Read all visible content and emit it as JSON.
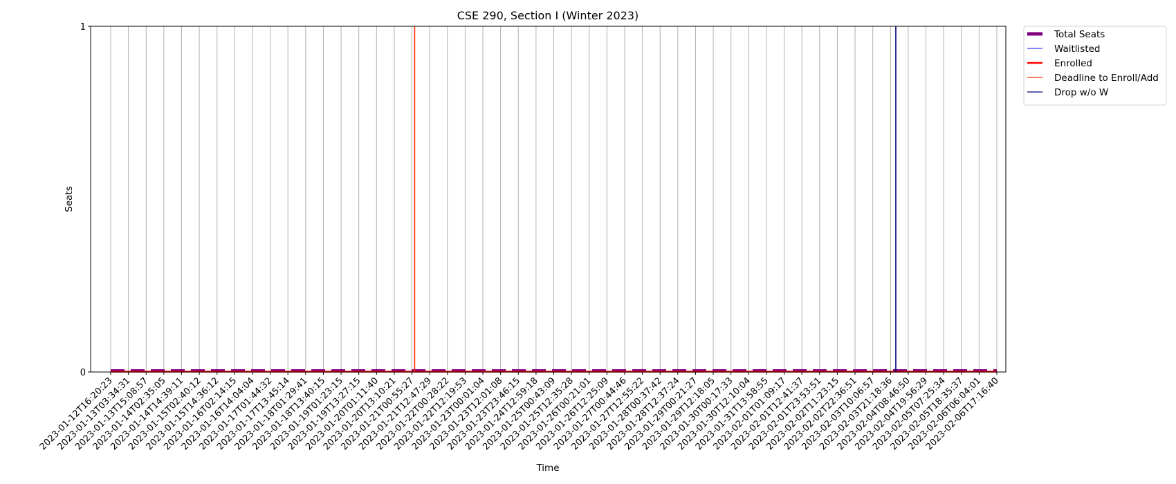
{
  "chart_data": {
    "type": "line",
    "title": "CSE 290, Section I (Winter 2023)",
    "xlabel": "Time",
    "ylabel": "Seats",
    "ylim": [
      0,
      1
    ],
    "yticks": [
      "0",
      "1"
    ],
    "grid": "vertical",
    "legend_position": "outside top-right",
    "x": [
      "2023-01-12T16:20:23",
      "2023-01-13T03:34:31",
      "2023-01-13T15:08:57",
      "2023-01-14T02:35:05",
      "2023-01-14T14:39:11",
      "2023-01-15T02:40:12",
      "2023-01-15T14:36:12",
      "2023-01-16T02:14:15",
      "2023-01-16T14:04:04",
      "2023-01-17T01:44:32",
      "2023-01-17T13:45:14",
      "2023-01-18T01:29:41",
      "2023-01-18T13:40:15",
      "2023-01-19T01:23:15",
      "2023-01-19T13:27:15",
      "2023-01-20T01:11:40",
      "2023-01-20T13:10:21",
      "2023-01-21T00:55:27",
      "2023-01-21T12:47:29",
      "2023-01-22T00:28:22",
      "2023-01-22T12:19:53",
      "2023-01-23T00:01:04",
      "2023-01-23T12:01:08",
      "2023-01-23T23:46:15",
      "2023-01-24T12:59:18",
      "2023-01-25T00:43:09",
      "2023-01-25T12:35:28",
      "2023-01-26T00:21:01",
      "2023-01-26T12:25:09",
      "2023-01-27T00:44:46",
      "2023-01-27T12:55:22",
      "2023-01-28T00:37:42",
      "2023-01-28T12:37:24",
      "2023-01-29T00:21:27",
      "2023-01-29T12:18:05",
      "2023-01-30T00:17:33",
      "2023-01-30T12:10:04",
      "2023-01-31T13:58:55",
      "2023-02-01T01:09:17",
      "2023-02-01T12:41:37",
      "2023-02-01T23:53:51",
      "2023-02-02T11:23:15",
      "2023-02-02T22:36:51",
      "2023-02-03T10:06:57",
      "2023-02-03T21:18:36",
      "2023-02-04T08:46:50",
      "2023-02-04T19:56:29",
      "2023-02-05T07:25:34",
      "2023-02-05T18:35:37",
      "2023-02-06T06:04:01",
      "2023-02-06T17:16:40"
    ],
    "series": [
      {
        "name": "Total Seats",
        "color": "#800080",
        "style": "thick dashed",
        "values": [
          0,
          0,
          0,
          0,
          0,
          0,
          0,
          0,
          0,
          0,
          0,
          0,
          0,
          0,
          0,
          0,
          0,
          0,
          0,
          0,
          0,
          0,
          0,
          0,
          0,
          0,
          0,
          0,
          0,
          0,
          0,
          0,
          0,
          0,
          0,
          0,
          0,
          0,
          0,
          0,
          0,
          0,
          0,
          0,
          0,
          0,
          0,
          0,
          0,
          0,
          0
        ]
      },
      {
        "name": "Waitlisted",
        "color": "#3a3aff",
        "style": "thin",
        "values": [
          0,
          0,
          0,
          0,
          0,
          0,
          0,
          0,
          0,
          0,
          0,
          0,
          0,
          0,
          0,
          0,
          0,
          0,
          0,
          0,
          0,
          0,
          0,
          0,
          0,
          0,
          0,
          0,
          0,
          0,
          0,
          0,
          0,
          0,
          0,
          0,
          0,
          0,
          0,
          0,
          0,
          0,
          0,
          0,
          0,
          0,
          0,
          0,
          0,
          0,
          0
        ]
      },
      {
        "name": "Enrolled",
        "color": "#ff0000",
        "style": "thick",
        "values": [
          0,
          0,
          0,
          0,
          0,
          0,
          0,
          0,
          0,
          0,
          0,
          0,
          0,
          0,
          0,
          0,
          0,
          0,
          0,
          0,
          0,
          0,
          0,
          0,
          0,
          0,
          0,
          0,
          0,
          0,
          0,
          0,
          0,
          0,
          0,
          0,
          0,
          0,
          0,
          0,
          0,
          0,
          0,
          0,
          0,
          0,
          0,
          0,
          0,
          0,
          0
        ]
      }
    ],
    "vlines": [
      {
        "name": "Deadline to Enroll/Add",
        "color": "#ff2a00",
        "x_index": 17.15
      },
      {
        "name": "Drop w/o W",
        "color": "#00007f",
        "x_index": 44.3
      }
    ]
  }
}
